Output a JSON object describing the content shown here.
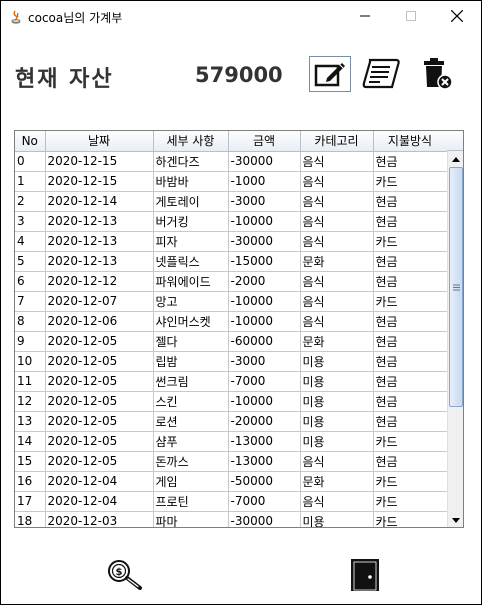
{
  "window": {
    "title": "cocoa님의 가계부"
  },
  "header": {
    "asset_label": "현재 자산",
    "asset_value": "579000"
  },
  "table": {
    "columns": [
      "No",
      "날짜",
      "세부 사항",
      "금액",
      "카테고리",
      "지불방식"
    ],
    "rows": [
      [
        "0",
        "2020-12-15",
        "하겐다즈",
        "-30000",
        "음식",
        "현금"
      ],
      [
        "1",
        "2020-12-15",
        "바밤바",
        "-1000",
        "음식",
        "카드"
      ],
      [
        "2",
        "2020-12-14",
        "게토레이",
        "-3000",
        "음식",
        "현금"
      ],
      [
        "3",
        "2020-12-13",
        "버거킹",
        "-10000",
        "음식",
        "현금"
      ],
      [
        "4",
        "2020-12-13",
        "피자",
        "-30000",
        "음식",
        "카드"
      ],
      [
        "5",
        "2020-12-13",
        "넷플릭스",
        "-15000",
        "문화",
        "현금"
      ],
      [
        "6",
        "2020-12-12",
        "파워에이드",
        "-2000",
        "음식",
        "현금"
      ],
      [
        "7",
        "2020-12-07",
        "망고",
        "-10000",
        "음식",
        "카드"
      ],
      [
        "8",
        "2020-12-06",
        "샤인머스켓",
        "-10000",
        "음식",
        "현금"
      ],
      [
        "9",
        "2020-12-05",
        "젤다",
        "-60000",
        "문화",
        "현금"
      ],
      [
        "10",
        "2020-12-05",
        "립밤",
        "-3000",
        "미용",
        "현금"
      ],
      [
        "11",
        "2020-12-05",
        "썬크림",
        "-7000",
        "미용",
        "현금"
      ],
      [
        "12",
        "2020-12-05",
        "스킨",
        "-10000",
        "미용",
        "현금"
      ],
      [
        "13",
        "2020-12-05",
        "로션",
        "-20000",
        "미용",
        "현금"
      ],
      [
        "14",
        "2020-12-05",
        "샴푸",
        "-13000",
        "미용",
        "카드"
      ],
      [
        "15",
        "2020-12-05",
        "돈까스",
        "-13000",
        "음식",
        "현금"
      ],
      [
        "16",
        "2020-12-04",
        "게임",
        "-50000",
        "문화",
        "카드"
      ],
      [
        "17",
        "2020-12-04",
        "프로틴",
        "-7000",
        "음식",
        "카드"
      ],
      [
        "18",
        "2020-12-03",
        "파마",
        "-30000",
        "미용",
        "카드"
      ]
    ]
  },
  "icons": {
    "edit": "edit-icon",
    "receipt": "receipt-icon",
    "trash": "trash-delete-icon",
    "search": "money-search-icon",
    "exit": "door-exit-icon"
  },
  "colors": {
    "text_dark": "#333333",
    "grid": "#c9c9c9",
    "scroll_thumb": "#c9d9f0"
  },
  "scroll": {
    "position": 0.0
  }
}
